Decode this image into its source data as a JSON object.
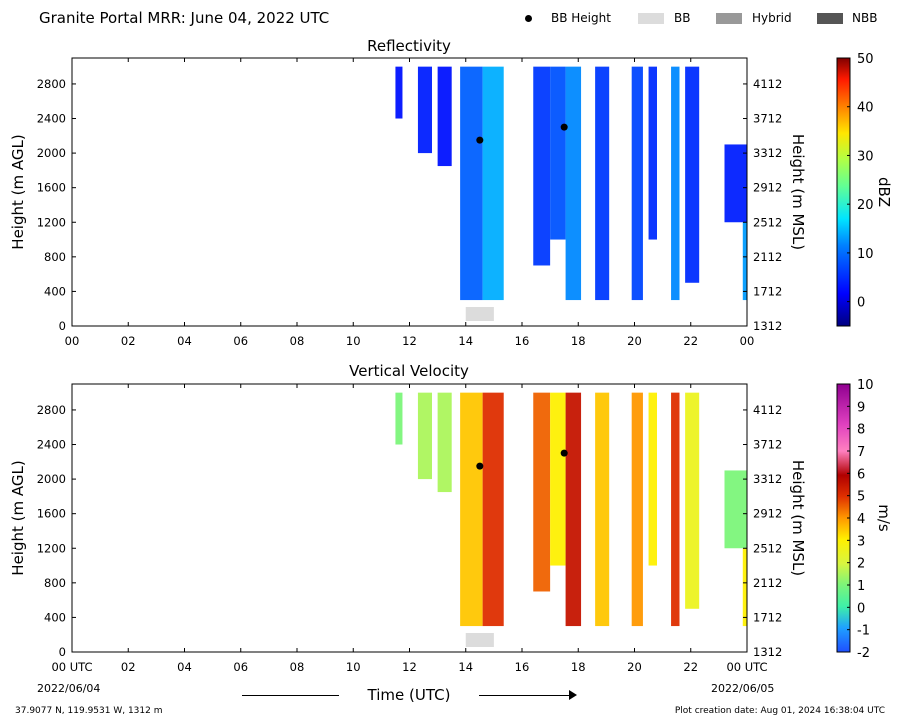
{
  "header": {
    "title": "Granite Portal MRR:  June 04, 2022 UTC",
    "legend": [
      {
        "label": "BB Height",
        "kind": "dot",
        "color": "#000000"
      },
      {
        "label": "BB",
        "kind": "box",
        "color": "#dcdcdc"
      },
      {
        "label": "Hybrid",
        "kind": "box",
        "color": "#999999"
      },
      {
        "label": "NBB",
        "kind": "box",
        "color": "#555555"
      }
    ]
  },
  "footer": {
    "location": "37.9077 N, 119.9531 W, 1312 m",
    "created": "Plot creation date: Aug 01, 2024 16:38:04 UTC",
    "xlabel": "Time (UTC)",
    "start_date": "2022/06/04",
    "end_date": "2022/06/05"
  },
  "chart_data": [
    {
      "type": "heatmap",
      "title": "Reflectivity",
      "ylabel_left": "Height (m AGL)",
      "ylabel_right": "Height (m MSL)",
      "xticks": [
        "00",
        "02",
        "04",
        "06",
        "08",
        "10",
        "12",
        "14",
        "16",
        "18",
        "20",
        "22",
        "00"
      ],
      "xlim_hours": [
        0,
        24
      ],
      "ylim_m_agl": [
        0,
        3100
      ],
      "yticks_left": [
        0,
        400,
        800,
        1200,
        1600,
        2000,
        2400,
        2800
      ],
      "yticks_right": [
        1312,
        1712,
        2112,
        2512,
        2912,
        3312,
        3712,
        4112
      ],
      "colorbar": {
        "label": "dBZ",
        "range": [
          -5,
          50
        ],
        "ticks": [
          0,
          10,
          20,
          30,
          40,
          50
        ]
      },
      "bright_band": [
        {
          "start_hour": 14.0,
          "end_hour": 15.0,
          "class": "BB"
        }
      ],
      "bb_height_points": [
        {
          "hour": 14.5,
          "height_m": 2150
        },
        {
          "hour": 17.5,
          "height_m": 2300
        }
      ],
      "echo_columns": [
        {
          "start": 11.5,
          "end": 11.75,
          "top": 3000,
          "bottom": 2400,
          "value": 3
        },
        {
          "start": 12.3,
          "end": 12.8,
          "top": 3000,
          "bottom": 2000,
          "value": 4
        },
        {
          "start": 13.0,
          "end": 13.5,
          "top": 3000,
          "bottom": 1850,
          "value": 3
        },
        {
          "start": 13.8,
          "end": 14.6,
          "top": 3000,
          "bottom": 300,
          "value": 9
        },
        {
          "start": 14.6,
          "end": 15.35,
          "top": 3000,
          "bottom": 300,
          "value": 14
        },
        {
          "start": 16.4,
          "end": 17.0,
          "top": 3000,
          "bottom": 700,
          "value": 6
        },
        {
          "start": 17.0,
          "end": 17.55,
          "top": 3000,
          "bottom": 1000,
          "value": 8
        },
        {
          "start": 17.55,
          "end": 18.1,
          "top": 3000,
          "bottom": 300,
          "value": 12
        },
        {
          "start": 18.6,
          "end": 19.1,
          "top": 3000,
          "bottom": 300,
          "value": 6
        },
        {
          "start": 19.9,
          "end": 20.3,
          "top": 3000,
          "bottom": 300,
          "value": 7
        },
        {
          "start": 20.5,
          "end": 20.8,
          "top": 3000,
          "bottom": 1000,
          "value": 5
        },
        {
          "start": 21.3,
          "end": 21.6,
          "top": 3000,
          "bottom": 300,
          "value": 12
        },
        {
          "start": 21.8,
          "end": 22.3,
          "top": 3000,
          "bottom": 500,
          "value": 5
        },
        {
          "start": 23.2,
          "end": 24.0,
          "top": 2100,
          "bottom": 1200,
          "value": 4
        },
        {
          "start": 23.85,
          "end": 24.0,
          "top": 1200,
          "bottom": 300,
          "value": 13
        }
      ]
    },
    {
      "type": "heatmap",
      "title": "Vertical Velocity",
      "ylabel_left": "Height (m AGL)",
      "ylabel_right": "Height (m MSL)",
      "xticks": [
        "00 UTC",
        "02",
        "04",
        "06",
        "08",
        "10",
        "12",
        "14",
        "16",
        "18",
        "20",
        "22",
        "00 UTC"
      ],
      "xlim_hours": [
        0,
        24
      ],
      "ylim_m_agl": [
        0,
        3100
      ],
      "yticks_left": [
        0,
        400,
        800,
        1200,
        1600,
        2000,
        2400,
        2800
      ],
      "yticks_right": [
        1312,
        1712,
        2112,
        2512,
        2912,
        3312,
        3712,
        4112
      ],
      "colorbar": {
        "label": "m/s",
        "range": [
          -2,
          10
        ],
        "ticks": [
          -2,
          -1,
          0,
          1,
          2,
          3,
          4,
          5,
          6,
          7,
          8,
          9,
          10
        ]
      },
      "bright_band": [
        {
          "start_hour": 14.0,
          "end_hour": 15.0,
          "class": "BB"
        }
      ],
      "bb_height_points": [
        {
          "hour": 14.5,
          "height_m": 2150
        },
        {
          "hour": 17.5,
          "height_m": 2300
        }
      ],
      "echo_columns": [
        {
          "start": 11.5,
          "end": 11.75,
          "top": 3000,
          "bottom": 2400,
          "value": 1
        },
        {
          "start": 12.3,
          "end": 12.8,
          "top": 3000,
          "bottom": 2000,
          "value": 1.5
        },
        {
          "start": 13.0,
          "end": 13.5,
          "top": 3000,
          "bottom": 1850,
          "value": 1.5
        },
        {
          "start": 13.8,
          "end": 14.6,
          "top": 3000,
          "bottom": 300,
          "value": 3.5
        },
        {
          "start": 14.6,
          "end": 15.35,
          "top": 3000,
          "bottom": 300,
          "value": 5
        },
        {
          "start": 16.4,
          "end": 17.0,
          "top": 3000,
          "bottom": 700,
          "value": 4.5
        },
        {
          "start": 17.0,
          "end": 17.55,
          "top": 3000,
          "bottom": 1000,
          "value": 3
        },
        {
          "start": 17.55,
          "end": 18.1,
          "top": 3000,
          "bottom": 300,
          "value": 5.5
        },
        {
          "start": 18.6,
          "end": 19.1,
          "top": 3000,
          "bottom": 300,
          "value": 3.5
        },
        {
          "start": 19.9,
          "end": 20.3,
          "top": 3000,
          "bottom": 300,
          "value": 4
        },
        {
          "start": 20.5,
          "end": 20.8,
          "top": 3000,
          "bottom": 1000,
          "value": 3
        },
        {
          "start": 21.3,
          "end": 21.6,
          "top": 3000,
          "bottom": 300,
          "value": 5
        },
        {
          "start": 21.8,
          "end": 22.3,
          "top": 3000,
          "bottom": 500,
          "value": 2.5
        },
        {
          "start": 23.2,
          "end": 24.0,
          "top": 2100,
          "bottom": 1200,
          "value": 1
        },
        {
          "start": 23.85,
          "end": 24.0,
          "top": 1200,
          "bottom": 300,
          "value": 3
        }
      ]
    }
  ]
}
